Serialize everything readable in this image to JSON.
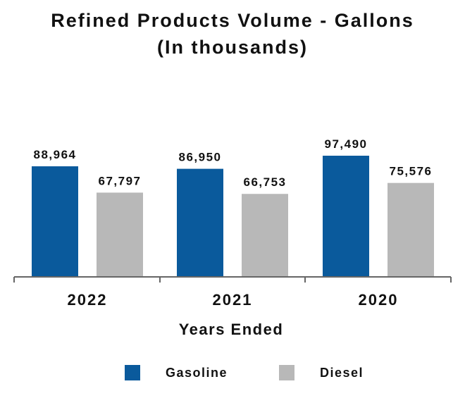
{
  "chart_data": {
    "type": "bar",
    "title": "Refined Products Volume - Gallons",
    "subtitle": "(In thousands)",
    "xlabel": "Years Ended",
    "ylabel": "",
    "categories": [
      "2022",
      "2021",
      "2020"
    ],
    "series": [
      {
        "name": "Gasoline",
        "color": "#0a5a9c",
        "values": [
          88964,
          86950,
          97490
        ],
        "labels": [
          "88,964",
          "86,950",
          "97,490"
        ]
      },
      {
        "name": "Diesel",
        "color": "#b8b8b8",
        "values": [
          67797,
          66753,
          75576
        ],
        "labels": [
          "67,797",
          "66,753",
          "75,576"
        ]
      }
    ],
    "ylim": [
      0,
      97490
    ],
    "grid": false,
    "legend": "bottom"
  }
}
